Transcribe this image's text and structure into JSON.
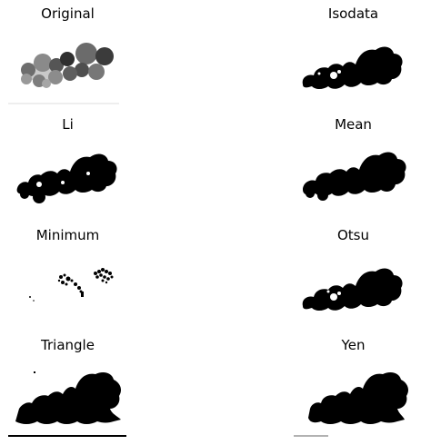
{
  "panels": [
    {
      "id": "original",
      "title": "Original",
      "mode": "grayscale"
    },
    {
      "id": "isodata",
      "title": "Isodata",
      "mode": "binary"
    },
    {
      "id": "li",
      "title": "Li",
      "mode": "binary"
    },
    {
      "id": "mean",
      "title": "Mean",
      "mode": "binary"
    },
    {
      "id": "minimum",
      "title": "Minimum",
      "mode": "sparse"
    },
    {
      "id": "otsu",
      "title": "Otsu",
      "mode": "binary"
    },
    {
      "id": "triangle",
      "title": "Triangle",
      "mode": "filled"
    },
    {
      "id": "yen",
      "title": "Yen",
      "mode": "filled"
    }
  ],
  "colors": {
    "foreground": "#000000",
    "background": "#ffffff",
    "gray_mid": "#7a7a7a",
    "gray_dark": "#3a3a3a",
    "gray_light": "#b5b5b5"
  }
}
